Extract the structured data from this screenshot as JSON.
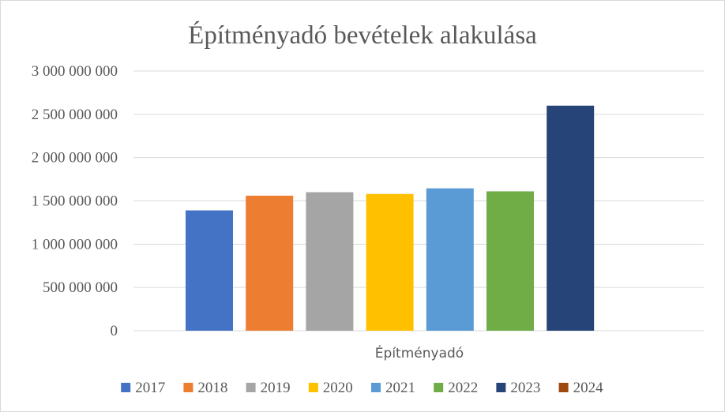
{
  "chart_data": {
    "type": "bar",
    "title": "Építményadó  bevételek alakulása",
    "categories": [
      "Építményadó"
    ],
    "series": [
      {
        "name": "2017",
        "values": [
          1390000000
        ],
        "color": "#4472C4"
      },
      {
        "name": "2018",
        "values": [
          1560000000
        ],
        "color": "#ED7D31"
      },
      {
        "name": "2019",
        "values": [
          1600000000
        ],
        "color": "#A5A5A5"
      },
      {
        "name": "2020",
        "values": [
          1580000000
        ],
        "color": "#FFC000"
      },
      {
        "name": "2021",
        "values": [
          1645000000
        ],
        "color": "#5B9BD5"
      },
      {
        "name": "2022",
        "values": [
          1610000000
        ],
        "color": "#70AD47"
      },
      {
        "name": "2023",
        "values": [
          2600000000
        ],
        "color": "#264478"
      },
      {
        "name": "2024",
        "values": [
          0
        ],
        "color": "#9E480E"
      }
    ],
    "yticks": [
      "0",
      "500 000 000",
      "1 000 000 000",
      "1 500 000 000",
      "2 000 000 000",
      "2 500 000 000",
      "3 000 000 000"
    ],
    "ylim": [
      0,
      3000000000
    ],
    "grid": true,
    "legend": "bottom"
  }
}
